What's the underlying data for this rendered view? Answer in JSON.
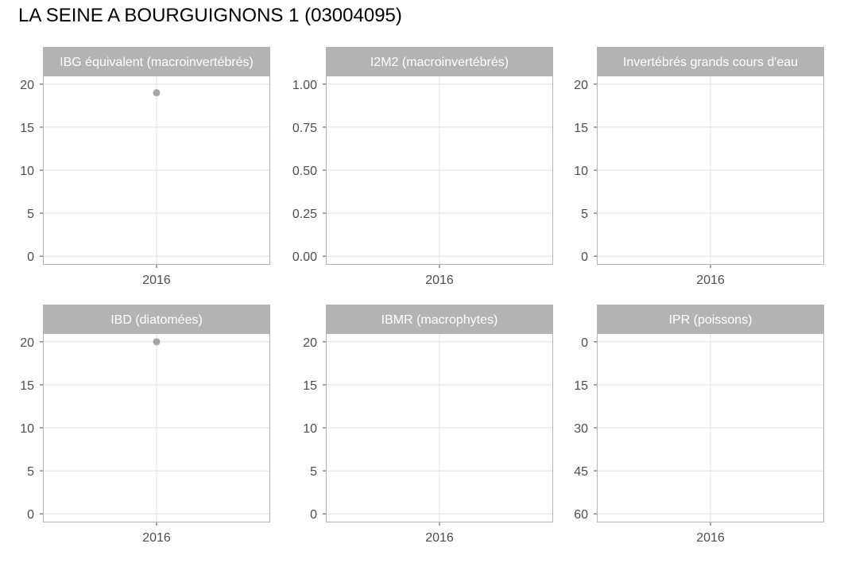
{
  "title": "LA SEINE A BOURGUIGNONS 1 (03004095)",
  "colors": {
    "strip_bg": "#b3b3b3",
    "strip_text": "#ffffff",
    "panel_border": "#b3b3b3",
    "grid": "#e0e0e0",
    "point": "#a6a6a6",
    "tick_text": "#4d4d4d"
  },
  "chart_data": [
    {
      "type": "scatter",
      "title": "IBG équivalent (macroinvertébrés)",
      "categories": [
        "2016"
      ],
      "ylim": [
        0,
        20
      ],
      "yreverse": false,
      "yticks": [
        "0",
        "5",
        "10",
        "15",
        "20"
      ],
      "points": [
        {
          "x": "2016",
          "y": 19
        }
      ]
    },
    {
      "type": "scatter",
      "title": "I2M2 (macroinvertébrés)",
      "categories": [
        "2016"
      ],
      "ylim": [
        0,
        1
      ],
      "yreverse": false,
      "yticks": [
        "0.00",
        "0.25",
        "0.50",
        "0.75",
        "1.00"
      ],
      "points": []
    },
    {
      "type": "scatter",
      "title": "Invertébrés grands cours d'eau",
      "categories": [
        "2016"
      ],
      "ylim": [
        0,
        20
      ],
      "yreverse": false,
      "yticks": [
        "0",
        "5",
        "10",
        "15",
        "20"
      ],
      "points": []
    },
    {
      "type": "scatter",
      "title": "IBD (diatomées)",
      "categories": [
        "2016"
      ],
      "ylim": [
        0,
        20
      ],
      "yreverse": false,
      "yticks": [
        "0",
        "5",
        "10",
        "15",
        "20"
      ],
      "points": [
        {
          "x": "2016",
          "y": 20
        }
      ]
    },
    {
      "type": "scatter",
      "title": "IBMR (macrophytes)",
      "categories": [
        "2016"
      ],
      "ylim": [
        0,
        20
      ],
      "yreverse": false,
      "yticks": [
        "0",
        "5",
        "10",
        "15",
        "20"
      ],
      "points": []
    },
    {
      "type": "scatter",
      "title": "IPR (poissons)",
      "categories": [
        "2016"
      ],
      "ylim": [
        0,
        60
      ],
      "yreverse": true,
      "yticks": [
        "0",
        "15",
        "30",
        "45",
        "60"
      ],
      "points": []
    }
  ]
}
